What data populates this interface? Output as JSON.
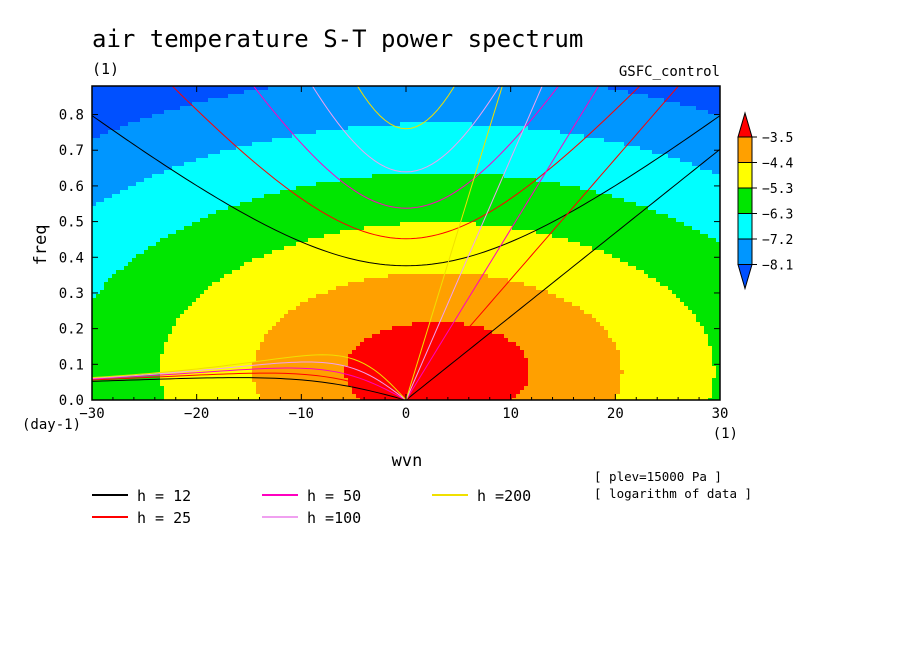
{
  "chart_data": {
    "type": "heatmap",
    "title": "air temperature S-T power spectrum",
    "subtitle_left": "(1)",
    "subtitle_right": "GSFC_control",
    "xlabel": "wvn",
    "ylabel": "freq",
    "x_unit": "(1)",
    "y_unit": "(day-1)",
    "xlim": [
      -30,
      30
    ],
    "ylim": [
      0,
      0.88
    ],
    "x_ticks": [
      -30,
      -20,
      -10,
      0,
      10,
      20,
      30
    ],
    "x_tick_labels": [
      "−30",
      "−20",
      "−10",
      "0",
      "10",
      "20",
      "30"
    ],
    "y_ticks": [
      0,
      0.1,
      0.2,
      0.3,
      0.4,
      0.5,
      0.6,
      0.7,
      0.8
    ],
    "y_tick_labels": [
      "0.0",
      "0.1",
      "0.2",
      "0.3",
      "0.4",
      "0.5",
      "0.6",
      "0.7",
      "0.8"
    ],
    "colorbar": {
      "levels": [
        -8.1,
        -7.2,
        -6.3,
        -5.3,
        -4.4,
        -3.5
      ],
      "labels": [
        "−8.1",
        "−7.2",
        "−6.3",
        "−5.3",
        "−4.4",
        "−3.5"
      ],
      "colors": [
        "#0050ff",
        "#0096ff",
        "#00ffff",
        "#00e600",
        "#ffff00",
        "#ffa000",
        "#ff0000"
      ]
    },
    "field": {
      "peak_center": [
        3,
        0.08
      ],
      "x_scale": 6.0,
      "y_scale": 0.16,
      "description_levels_from_outer": [
        "#0050ff",
        "#0096ff",
        "#00ffff",
        "#00e600",
        "#ffff00",
        "#ffa000",
        "#ff0000"
      ]
    },
    "dispersion_curves": [
      {
        "name": "h = 12",
        "h": 12,
        "color": "#000000"
      },
      {
        "name": "h = 25",
        "h": 25,
        "color": "#ff0000"
      },
      {
        "name": "h = 50",
        "h": 50,
        "color": "#ff00c0"
      },
      {
        "name": "h =100",
        "h": 100,
        "color": "#f0a0f0"
      },
      {
        "name": "h =200",
        "h": 200,
        "color": "#f0e000"
      }
    ],
    "annotations": [
      "[ plev=15000 Pa ]",
      "[ logarithm of data ]"
    ]
  }
}
